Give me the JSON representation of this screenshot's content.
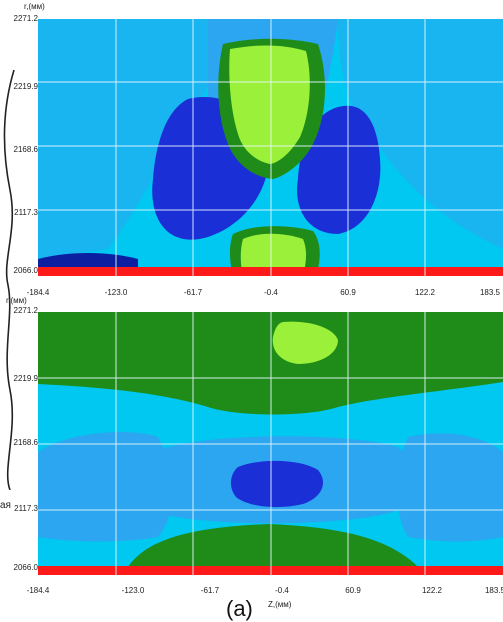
{
  "chart_data": [
    {
      "type": "heatmap",
      "ylabel": "r,(мм)",
      "yticks": [
        "2271.2",
        "2219.9",
        "2168.6",
        "2117.3",
        "2066.0"
      ],
      "xticks": [
        "-184.4",
        "-123.0",
        "-61.7",
        "-0.4",
        "60.9",
        "122.2",
        "183.5"
      ],
      "xlim": [
        -184.4,
        183.5
      ],
      "ylim": [
        2066.0,
        2271.2
      ],
      "grid": true,
      "colors": [
        "#00c8f0",
        "#2ca6f0",
        "#1a2fd6",
        "#0c1fa0",
        "#1f8c1a",
        "#9bf03a",
        "#ff1a1a"
      ]
    },
    {
      "type": "heatmap",
      "ylabel": "r,(мм)",
      "xlabel": "Z,(мм)",
      "yticks": [
        "2271.2",
        "2219.9",
        "2168.6",
        "2117.3",
        "2066.0"
      ],
      "xticks": [
        "-184.4",
        "-123.0",
        "-61.7",
        "-0.4",
        "60.9",
        "122.2",
        "183.5"
      ],
      "xlim": [
        -184.4,
        183.5
      ],
      "ylim": [
        2066.0,
        2271.2
      ],
      "grid": true,
      "colors": [
        "#00c8f0",
        "#2ca6f0",
        "#1a2fd6",
        "#0c1fa0",
        "#1f8c1a",
        "#9bf03a",
        "#ff1a1a"
      ]
    }
  ],
  "side_text": "ая",
  "figure_label": "(а)"
}
